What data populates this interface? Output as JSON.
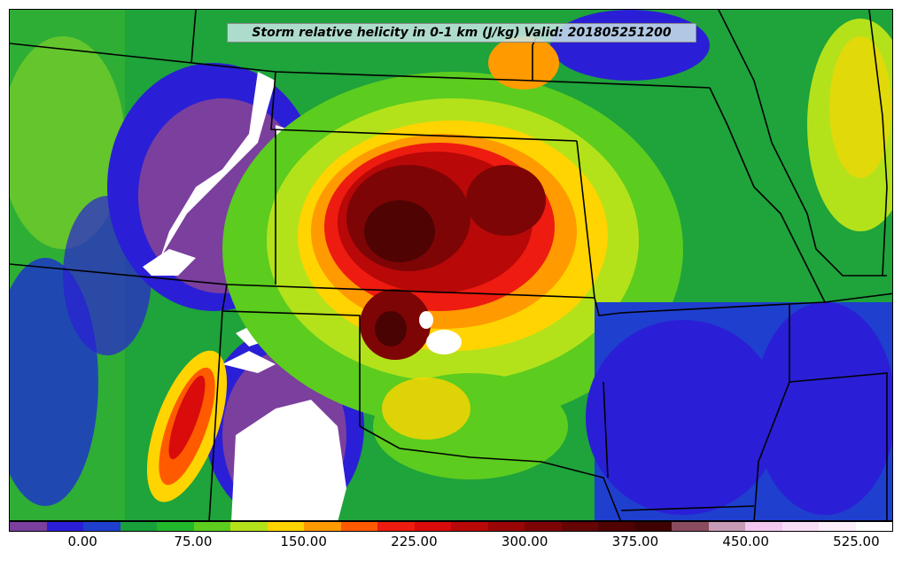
{
  "title": "Storm relative helicity in 0-1 km (J/kg) Valid: 201805251200",
  "colorbar": {
    "colors": [
      "#7b3f9e",
      "#2a1fd6",
      "#1f3fcf",
      "#18a03a",
      "#22b82c",
      "#5ccc1f",
      "#b4e21a",
      "#ffd400",
      "#ff9a00",
      "#ff5a00",
      "#ee1b10",
      "#d90b0b",
      "#b80808",
      "#9a0606",
      "#7e0505",
      "#650404",
      "#500303",
      "#3e0202",
      "#8a4b5f",
      "#c79ab5",
      "#f3c8f0",
      "#f8ddf6",
      "#fbeefb",
      "#ffffff"
    ],
    "ticks": [
      "0.00",
      "75.00",
      "150.00",
      "225.00",
      "300.00",
      "375.00",
      "450.00",
      "525.00"
    ],
    "tick_values": [
      0,
      75,
      150,
      225,
      300,
      375,
      450,
      525
    ],
    "range": [
      -50,
      550
    ]
  },
  "palette": {
    "purple": "#7b3f9e",
    "blue": "#2a1fd6",
    "green": "#18a03a",
    "lime": "#5ccc1f",
    "yellow": "#ffd400",
    "orange": "#ff7a00",
    "red": "#e01010",
    "darkred": "#8a0606",
    "maroon": "#4a0303",
    "white": "#ffffff"
  }
}
